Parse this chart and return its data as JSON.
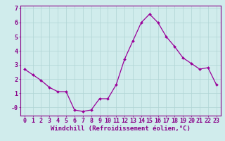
{
  "xlabel": "Windchill (Refroidissement éolien,°C)",
  "x_values": [
    0,
    1,
    2,
    3,
    4,
    5,
    6,
    7,
    8,
    9,
    10,
    11,
    12,
    13,
    14,
    15,
    16,
    17,
    18,
    19,
    20,
    21,
    22,
    23
  ],
  "y_values": [
    2.7,
    2.3,
    1.9,
    1.4,
    1.1,
    1.1,
    -0.2,
    -0.3,
    -0.2,
    0.6,
    0.6,
    1.6,
    3.4,
    4.7,
    6.0,
    6.6,
    6.0,
    5.0,
    4.3,
    3.5,
    3.1,
    2.7,
    2.8,
    1.6
  ],
  "line_color": "#990099",
  "marker_color": "#990099",
  "bg_color": "#d0ecec",
  "grid_color": "#b0d4d4",
  "xlim": [
    -0.5,
    23.5
  ],
  "ylim": [
    -0.6,
    7.2
  ],
  "yticks": [
    0,
    1,
    2,
    3,
    4,
    5,
    6,
    7
  ],
  "ytick_labels": [
    "-0",
    "1",
    "2",
    "3",
    "4",
    "5",
    "6",
    "7"
  ],
  "xtick_labels": [
    "0",
    "1",
    "2",
    "3",
    "4",
    "5",
    "6",
    "7",
    "8",
    "9",
    "10",
    "11",
    "12",
    "13",
    "14",
    "15",
    "16",
    "17",
    "18",
    "19",
    "20",
    "21",
    "22",
    "23"
  ],
  "text_color": "#880088",
  "border_color": "#880088",
  "xlabel_fontsize": 6.5,
  "tick_fontsize": 6.0
}
